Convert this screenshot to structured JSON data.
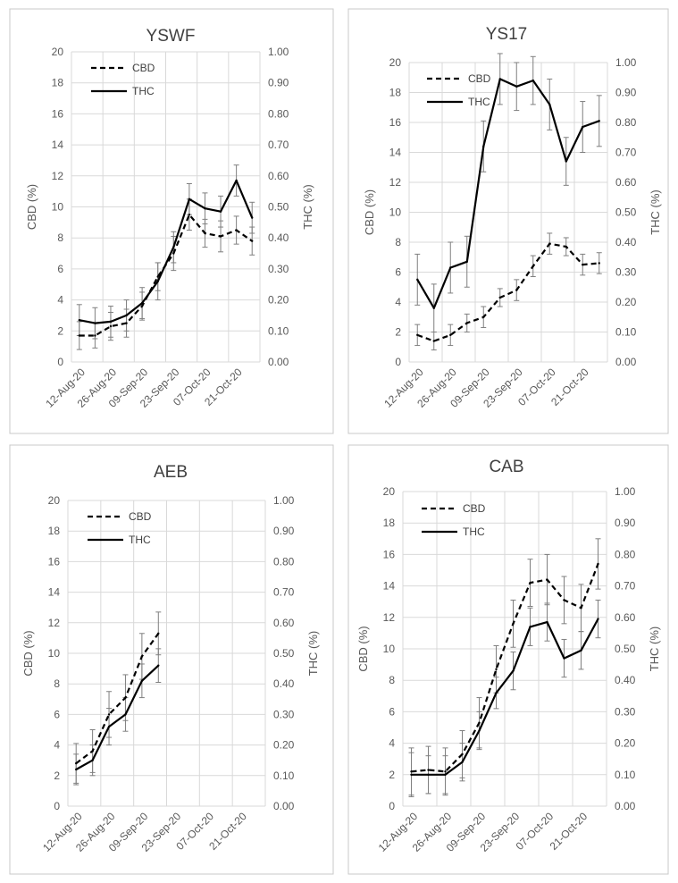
{
  "chart_data": [
    {
      "type": "line",
      "title": "YSWF",
      "ylabel": "CBD (%)",
      "y2label": "THC (%)",
      "ylim": [
        0,
        20
      ],
      "y2lim": [
        0,
        1
      ],
      "yticks": [
        "0",
        "2",
        "4",
        "6",
        "8",
        "10",
        "12",
        "14",
        "16",
        "18",
        "20"
      ],
      "y2ticks": [
        "0.00",
        "0.10",
        "0.20",
        "0.30",
        "0.40",
        "0.50",
        "0.60",
        "0.70",
        "0.80",
        "0.90",
        "1.00"
      ],
      "categories": [
        "12-Aug-20",
        "26-Aug-20",
        "09-Sep-20",
        "23-Sep-20",
        "07-Oct-20",
        "21-Oct-20"
      ],
      "x_slots": 12,
      "legend": "top-left",
      "series": [
        {
          "name": "CBD",
          "axis": "left",
          "style": "dashed",
          "x": [
            0,
            1,
            2,
            3,
            4,
            5,
            6,
            7,
            8,
            9,
            10,
            11
          ],
          "values": [
            1.7,
            1.7,
            2.3,
            2.5,
            3.6,
            5.5,
            7.0,
            9.5,
            8.3,
            8.1,
            8.5,
            7.8
          ],
          "errors": [
            0.9,
            0.8,
            0.9,
            0.9,
            0.9,
            0.9,
            1.1,
            1.0,
            0.9,
            1.0,
            0.9,
            0.9
          ]
        },
        {
          "name": "THC",
          "axis": "right",
          "style": "solid",
          "x": [
            0,
            1,
            2,
            3,
            4,
            5,
            6,
            7,
            8,
            9,
            10,
            11
          ],
          "values": [
            0.135,
            0.125,
            0.13,
            0.15,
            0.19,
            0.26,
            0.37,
            0.525,
            0.495,
            0.485,
            0.585,
            0.465
          ],
          "errors": [
            0.05,
            0.05,
            0.05,
            0.05,
            0.05,
            0.06,
            0.05,
            0.05,
            0.05,
            0.05,
            0.05,
            0.05
          ]
        }
      ]
    },
    {
      "type": "line",
      "title": "YS17",
      "ylabel": "CBD (%)",
      "y2label": "THC (%)",
      "ylim": [
        0,
        20
      ],
      "y2lim": [
        0,
        1
      ],
      "yticks": [
        "0",
        "2",
        "4",
        "6",
        "8",
        "10",
        "12",
        "14",
        "16",
        "18",
        "20"
      ],
      "y2ticks": [
        "0.00",
        "0.10",
        "0.20",
        "0.30",
        "0.40",
        "0.50",
        "0.60",
        "0.70",
        "0.80",
        "0.90",
        "1.00"
      ],
      "categories": [
        "12-Aug-20",
        "26-Aug-20",
        "09-Sep-20",
        "23-Sep-20",
        "07-Oct-20",
        "21-Oct-20"
      ],
      "x_slots": 12,
      "legend": "top-left",
      "series": [
        {
          "name": "CBD",
          "axis": "left",
          "style": "dashed",
          "x": [
            0,
            1,
            2,
            3,
            4,
            5,
            6,
            7,
            8,
            9,
            10,
            11
          ],
          "values": [
            1.8,
            1.4,
            1.8,
            2.6,
            3.0,
            4.3,
            4.8,
            6.4,
            7.9,
            7.7,
            6.5,
            6.6
          ],
          "errors": [
            0.7,
            0.6,
            0.7,
            0.6,
            0.7,
            0.6,
            0.7,
            0.7,
            0.7,
            0.6,
            0.7,
            0.7
          ]
        },
        {
          "name": "THC",
          "axis": "right",
          "style": "solid",
          "x": [
            0,
            1,
            2,
            3,
            4,
            5,
            6,
            7,
            8,
            9,
            10,
            11
          ],
          "values": [
            0.275,
            0.18,
            0.315,
            0.335,
            0.72,
            0.945,
            0.92,
            0.94,
            0.86,
            0.67,
            0.785,
            0.805
          ],
          "errors": [
            0.085,
            0.08,
            0.085,
            0.085,
            0.085,
            0.085,
            0.08,
            0.08,
            0.085,
            0.08,
            0.085,
            0.085
          ]
        }
      ]
    },
    {
      "type": "line",
      "title": "AEB",
      "ylabel": "CBD (%)",
      "y2label": "THC (%)",
      "ylim": [
        0,
        20
      ],
      "y2lim": [
        0,
        1
      ],
      "yticks": [
        "0",
        "2",
        "4",
        "6",
        "8",
        "10",
        "12",
        "14",
        "16",
        "18",
        "20"
      ],
      "y2ticks": [
        "0.00",
        "0.10",
        "0.20",
        "0.30",
        "0.40",
        "0.50",
        "0.60",
        "0.70",
        "0.80",
        "0.90",
        "1.00"
      ],
      "categories": [
        "12-Aug-20",
        "26-Aug-20",
        "09-Sep-20",
        "23-Sep-20",
        "07-Oct-20",
        "21-Oct-20"
      ],
      "x_slots": 12,
      "legend": "top-left",
      "series": [
        {
          "name": "CBD",
          "axis": "left",
          "style": "dashed",
          "x": [
            0,
            1,
            2,
            3,
            4,
            5
          ],
          "values": [
            2.8,
            3.6,
            6.0,
            7.1,
            9.8,
            11.3
          ],
          "errors": [
            1.3,
            1.4,
            1.5,
            1.5,
            1.5,
            1.4
          ]
        },
        {
          "name": "THC",
          "axis": "right",
          "style": "solid",
          "x": [
            0,
            1,
            2,
            3,
            4,
            5
          ],
          "values": [
            0.12,
            0.15,
            0.26,
            0.3,
            0.41,
            0.46
          ],
          "errors": [
            0.05,
            0.05,
            0.06,
            0.055,
            0.055,
            0.055
          ]
        }
      ]
    },
    {
      "type": "line",
      "title": "CAB",
      "ylabel": "CBD (%)",
      "y2label": "THC (%)",
      "ylim": [
        0,
        20
      ],
      "y2lim": [
        0,
        1
      ],
      "yticks": [
        "0",
        "2",
        "4",
        "6",
        "8",
        "10",
        "12",
        "14",
        "16",
        "18",
        "20"
      ],
      "y2ticks": [
        "0.00",
        "0.10",
        "0.20",
        "0.30",
        "0.40",
        "0.50",
        "0.60",
        "0.70",
        "0.80",
        "0.90",
        "1.00"
      ],
      "categories": [
        "12-Aug-20",
        "26-Aug-20",
        "09-Sep-20",
        "23-Sep-20",
        "07-Oct-20",
        "21-Oct-20"
      ],
      "x_slots": 12,
      "legend": "top-left",
      "series": [
        {
          "name": "CBD",
          "axis": "left",
          "style": "dashed",
          "x": [
            0,
            1,
            2,
            3,
            4,
            5,
            6,
            7,
            8,
            9,
            10,
            11
          ],
          "values": [
            2.2,
            2.3,
            2.2,
            3.3,
            5.3,
            8.7,
            11.6,
            14.2,
            14.4,
            13.1,
            12.6,
            15.4
          ],
          "errors": [
            1.5,
            1.5,
            1.5,
            1.5,
            1.6,
            1.5,
            1.5,
            1.5,
            1.6,
            1.5,
            1.5,
            1.6
          ]
        },
        {
          "name": "THC",
          "axis": "right",
          "style": "solid",
          "x": [
            0,
            1,
            2,
            3,
            4,
            5,
            6,
            7,
            8,
            9,
            10,
            11
          ],
          "values": [
            0.1,
            0.1,
            0.1,
            0.14,
            0.24,
            0.36,
            0.43,
            0.57,
            0.585,
            0.47,
            0.495,
            0.595
          ],
          "errors": [
            0.07,
            0.06,
            0.06,
            0.06,
            0.06,
            0.05,
            0.06,
            0.06,
            0.06,
            0.06,
            0.06,
            0.06
          ]
        }
      ]
    }
  ]
}
